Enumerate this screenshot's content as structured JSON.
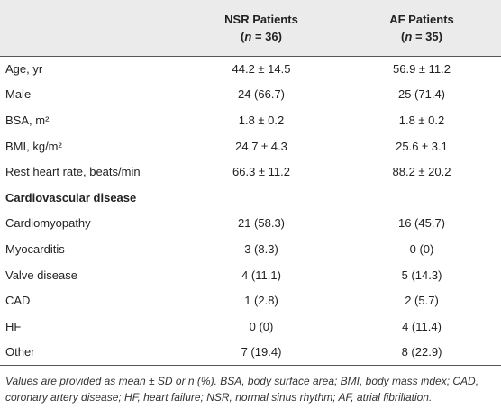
{
  "table": {
    "header": [
      {
        "title": "NSR Patients",
        "n": {
          "pre": "(",
          "var": "n",
          "post": " = 36)"
        }
      },
      {
        "title": "AF Patients",
        "n": {
          "pre": "(",
          "var": "n",
          "post": " = 35)"
        }
      }
    ],
    "rows": [
      {
        "cells": [
          "Age, yr",
          "44.2 ± 14.5",
          "56.9 ± 11.2"
        ]
      },
      {
        "cells": [
          "Male",
          "24 (66.7)",
          "25 (71.4)"
        ]
      },
      {
        "cells": [
          "BSA, m²",
          "1.8 ± 0.2",
          "1.8 ± 0.2"
        ]
      },
      {
        "cells": [
          "BMI, kg/m²",
          "24.7 ± 4.3",
          "25.6 ± 3.1"
        ]
      },
      {
        "cells": [
          "Rest heart rate, beats/min",
          "66.3 ± 11.2",
          "88.2 ± 20.2"
        ]
      },
      {
        "section": "Cardiovascular disease"
      },
      {
        "cells": [
          "Cardiomyopathy",
          "21 (58.3)",
          "16 (45.7)"
        ]
      },
      {
        "cells": [
          "Myocarditis",
          "3 (8.3)",
          "0 (0)"
        ]
      },
      {
        "cells": [
          "Valve disease",
          "4 (11.1)",
          "5 (14.3)"
        ]
      },
      {
        "cells": [
          "CAD",
          "1 (2.8)",
          "2 (5.7)"
        ]
      },
      {
        "cells": [
          "HF",
          "0 (0)",
          "4 (11.4)"
        ]
      },
      {
        "cells": [
          "Other",
          "7 (19.4)",
          "8 (22.9)"
        ]
      }
    ],
    "footnote": "Values are provided as mean ± SD or n (%). BSA, body surface area; BMI, body mass index; CAD, coronary artery disease; HF, heart failure; NSR, normal sinus rhythm; AF, atrial fibrillation."
  }
}
